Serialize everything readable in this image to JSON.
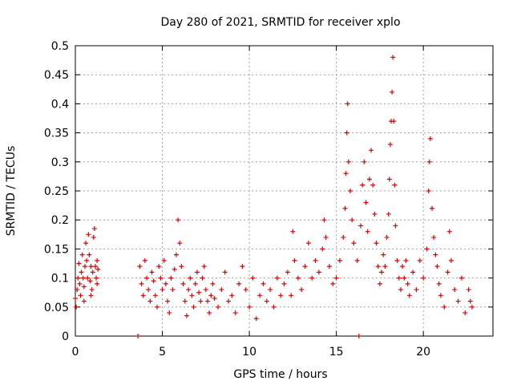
{
  "chart_data": {
    "type": "scatter",
    "title": "Day 280 of 2021, SRMTID for receiver xplo",
    "xlabel": "GPS time / hours",
    "ylabel": "SRMTID / TECUs",
    "xlim": [
      0,
      24
    ],
    "ylim": [
      0,
      0.5
    ],
    "x_ticks": [
      0,
      5,
      10,
      15,
      20
    ],
    "x_tick_labels": [
      "0",
      "5",
      "10",
      "15",
      "20"
    ],
    "y_ticks": [
      0,
      0.05,
      0.1,
      0.15,
      0.2,
      0.25,
      0.3,
      0.35,
      0.4,
      0.45,
      0.5
    ],
    "y_tick_labels": [
      "0",
      "0.05",
      "0.1",
      "0.15",
      "0.2",
      "0.25",
      "0.3",
      "0.35",
      "0.4",
      "0.45",
      "0.5"
    ],
    "grid": true,
    "marker": "plus",
    "color": "#e00000",
    "series": [
      {
        "name": "SRMTID",
        "points": [
          [
            0.0,
            0.065
          ],
          [
            0.1,
            0.08
          ],
          [
            0.15,
            0.1
          ],
          [
            0.2,
            0.125
          ],
          [
            0.25,
            0.09
          ],
          [
            0.3,
            0.07
          ],
          [
            0.35,
            0.11
          ],
          [
            0.4,
            0.14
          ],
          [
            0.45,
            0.1
          ],
          [
            0.5,
            0.085
          ],
          [
            0.55,
            0.12
          ],
          [
            0.6,
            0.16
          ],
          [
            0.65,
            0.13
          ],
          [
            0.7,
            0.1
          ],
          [
            0.75,
            0.175
          ],
          [
            0.8,
            0.14
          ],
          [
            0.85,
            0.095
          ],
          [
            0.9,
            0.12
          ],
          [
            0.95,
            0.08
          ],
          [
            1.0,
            0.11
          ],
          [
            1.05,
            0.17
          ],
          [
            1.1,
            0.185
          ],
          [
            1.15,
            0.12
          ],
          [
            1.2,
            0.1
          ],
          [
            1.25,
            0.09
          ],
          [
            1.3,
            0.115
          ],
          [
            0.05,
            0.05
          ],
          [
            0.5,
            0.06
          ],
          [
            0.9,
            0.07
          ],
          [
            1.25,
            0.13
          ],
          [
            3.6,
            0.0
          ],
          [
            16.3,
            0.0
          ],
          [
            3.7,
            0.12
          ],
          [
            3.8,
            0.09
          ],
          [
            3.9,
            0.07
          ],
          [
            4.0,
            0.13
          ],
          [
            4.1,
            0.1
          ],
          [
            4.2,
            0.08
          ],
          [
            4.3,
            0.06
          ],
          [
            4.4,
            0.11
          ],
          [
            4.5,
            0.095
          ],
          [
            4.6,
            0.07
          ],
          [
            4.7,
            0.05
          ],
          [
            4.8,
            0.12
          ],
          [
            4.9,
            0.1
          ],
          [
            5.0,
            0.08
          ],
          [
            5.1,
            0.13
          ],
          [
            5.2,
            0.09
          ],
          [
            5.3,
            0.06
          ],
          [
            5.4,
            0.04
          ],
          [
            5.5,
            0.1
          ],
          [
            5.6,
            0.08
          ],
          [
            5.7,
            0.115
          ],
          [
            5.8,
            0.14
          ],
          [
            5.9,
            0.2
          ],
          [
            6.0,
            0.16
          ],
          [
            6.1,
            0.12
          ],
          [
            6.2,
            0.09
          ],
          [
            6.3,
            0.06
          ],
          [
            6.4,
            0.035
          ],
          [
            6.5,
            0.08
          ],
          [
            6.6,
            0.1
          ],
          [
            6.7,
            0.07
          ],
          [
            6.8,
            0.05
          ],
          [
            6.9,
            0.09
          ],
          [
            7.0,
            0.11
          ],
          [
            7.1,
            0.075
          ],
          [
            7.2,
            0.06
          ],
          [
            7.3,
            0.1
          ],
          [
            7.4,
            0.12
          ],
          [
            7.5,
            0.08
          ],
          [
            7.6,
            0.06
          ],
          [
            7.7,
            0.04
          ],
          [
            7.8,
            0.07
          ],
          [
            7.9,
            0.09
          ],
          [
            8.0,
            0.065
          ],
          [
            8.2,
            0.05
          ],
          [
            8.4,
            0.08
          ],
          [
            8.6,
            0.11
          ],
          [
            8.8,
            0.06
          ],
          [
            9.0,
            0.07
          ],
          [
            9.2,
            0.04
          ],
          [
            9.4,
            0.09
          ],
          [
            9.6,
            0.12
          ],
          [
            9.8,
            0.08
          ],
          [
            10.0,
            0.05
          ],
          [
            10.2,
            0.1
          ],
          [
            10.4,
            0.03
          ],
          [
            10.6,
            0.07
          ],
          [
            10.8,
            0.09
          ],
          [
            11.0,
            0.06
          ],
          [
            11.2,
            0.08
          ],
          [
            11.4,
            0.05
          ],
          [
            11.6,
            0.1
          ],
          [
            11.8,
            0.07
          ],
          [
            12.0,
            0.09
          ],
          [
            12.2,
            0.11
          ],
          [
            12.4,
            0.07
          ],
          [
            12.5,
            0.18
          ],
          [
            12.6,
            0.13
          ],
          [
            12.8,
            0.1
          ],
          [
            13.0,
            0.08
          ],
          [
            13.2,
            0.12
          ],
          [
            13.4,
            0.16
          ],
          [
            13.6,
            0.1
          ],
          [
            13.8,
            0.13
          ],
          [
            14.0,
            0.11
          ],
          [
            14.2,
            0.15
          ],
          [
            14.3,
            0.2
          ],
          [
            14.4,
            0.17
          ],
          [
            14.6,
            0.12
          ],
          [
            14.8,
            0.09
          ],
          [
            15.0,
            0.1
          ],
          [
            15.2,
            0.13
          ],
          [
            15.4,
            0.17
          ],
          [
            15.5,
            0.22
          ],
          [
            15.55,
            0.28
          ],
          [
            15.6,
            0.35
          ],
          [
            15.65,
            0.4
          ],
          [
            15.7,
            0.3
          ],
          [
            15.8,
            0.25
          ],
          [
            15.9,
            0.2
          ],
          [
            16.0,
            0.16
          ],
          [
            16.2,
            0.13
          ],
          [
            16.4,
            0.19
          ],
          [
            16.5,
            0.26
          ],
          [
            16.6,
            0.3
          ],
          [
            16.7,
            0.23
          ],
          [
            16.8,
            0.18
          ],
          [
            16.9,
            0.27
          ],
          [
            17.0,
            0.32
          ],
          [
            17.1,
            0.26
          ],
          [
            17.2,
            0.21
          ],
          [
            17.3,
            0.16
          ],
          [
            17.4,
            0.12
          ],
          [
            17.5,
            0.09
          ],
          [
            17.6,
            0.11
          ],
          [
            17.7,
            0.14
          ],
          [
            17.8,
            0.12
          ],
          [
            17.9,
            0.17
          ],
          [
            18.0,
            0.21
          ],
          [
            18.05,
            0.27
          ],
          [
            18.1,
            0.33
          ],
          [
            18.15,
            0.37
          ],
          [
            18.2,
            0.42
          ],
          [
            18.25,
            0.48
          ],
          [
            18.3,
            0.37
          ],
          [
            18.35,
            0.26
          ],
          [
            18.4,
            0.19
          ],
          [
            18.5,
            0.13
          ],
          [
            18.6,
            0.1
          ],
          [
            18.7,
            0.08
          ],
          [
            18.8,
            0.12
          ],
          [
            18.9,
            0.1
          ],
          [
            19.0,
            0.13
          ],
          [
            19.1,
            0.09
          ],
          [
            19.2,
            0.07
          ],
          [
            19.4,
            0.11
          ],
          [
            19.6,
            0.08
          ],
          [
            19.8,
            0.13
          ],
          [
            20.0,
            0.1
          ],
          [
            20.2,
            0.15
          ],
          [
            20.3,
            0.25
          ],
          [
            20.35,
            0.3
          ],
          [
            20.4,
            0.34
          ],
          [
            20.5,
            0.22
          ],
          [
            20.6,
            0.17
          ],
          [
            20.7,
            0.14
          ],
          [
            20.8,
            0.12
          ],
          [
            20.9,
            0.09
          ],
          [
            21.0,
            0.07
          ],
          [
            21.2,
            0.05
          ],
          [
            21.4,
            0.11
          ],
          [
            21.5,
            0.18
          ],
          [
            21.6,
            0.13
          ],
          [
            21.8,
            0.08
          ],
          [
            22.0,
            0.06
          ],
          [
            22.2,
            0.1
          ],
          [
            22.4,
            0.04
          ],
          [
            22.6,
            0.08
          ],
          [
            22.7,
            0.06
          ],
          [
            22.8,
            0.05
          ]
        ]
      }
    ]
  }
}
